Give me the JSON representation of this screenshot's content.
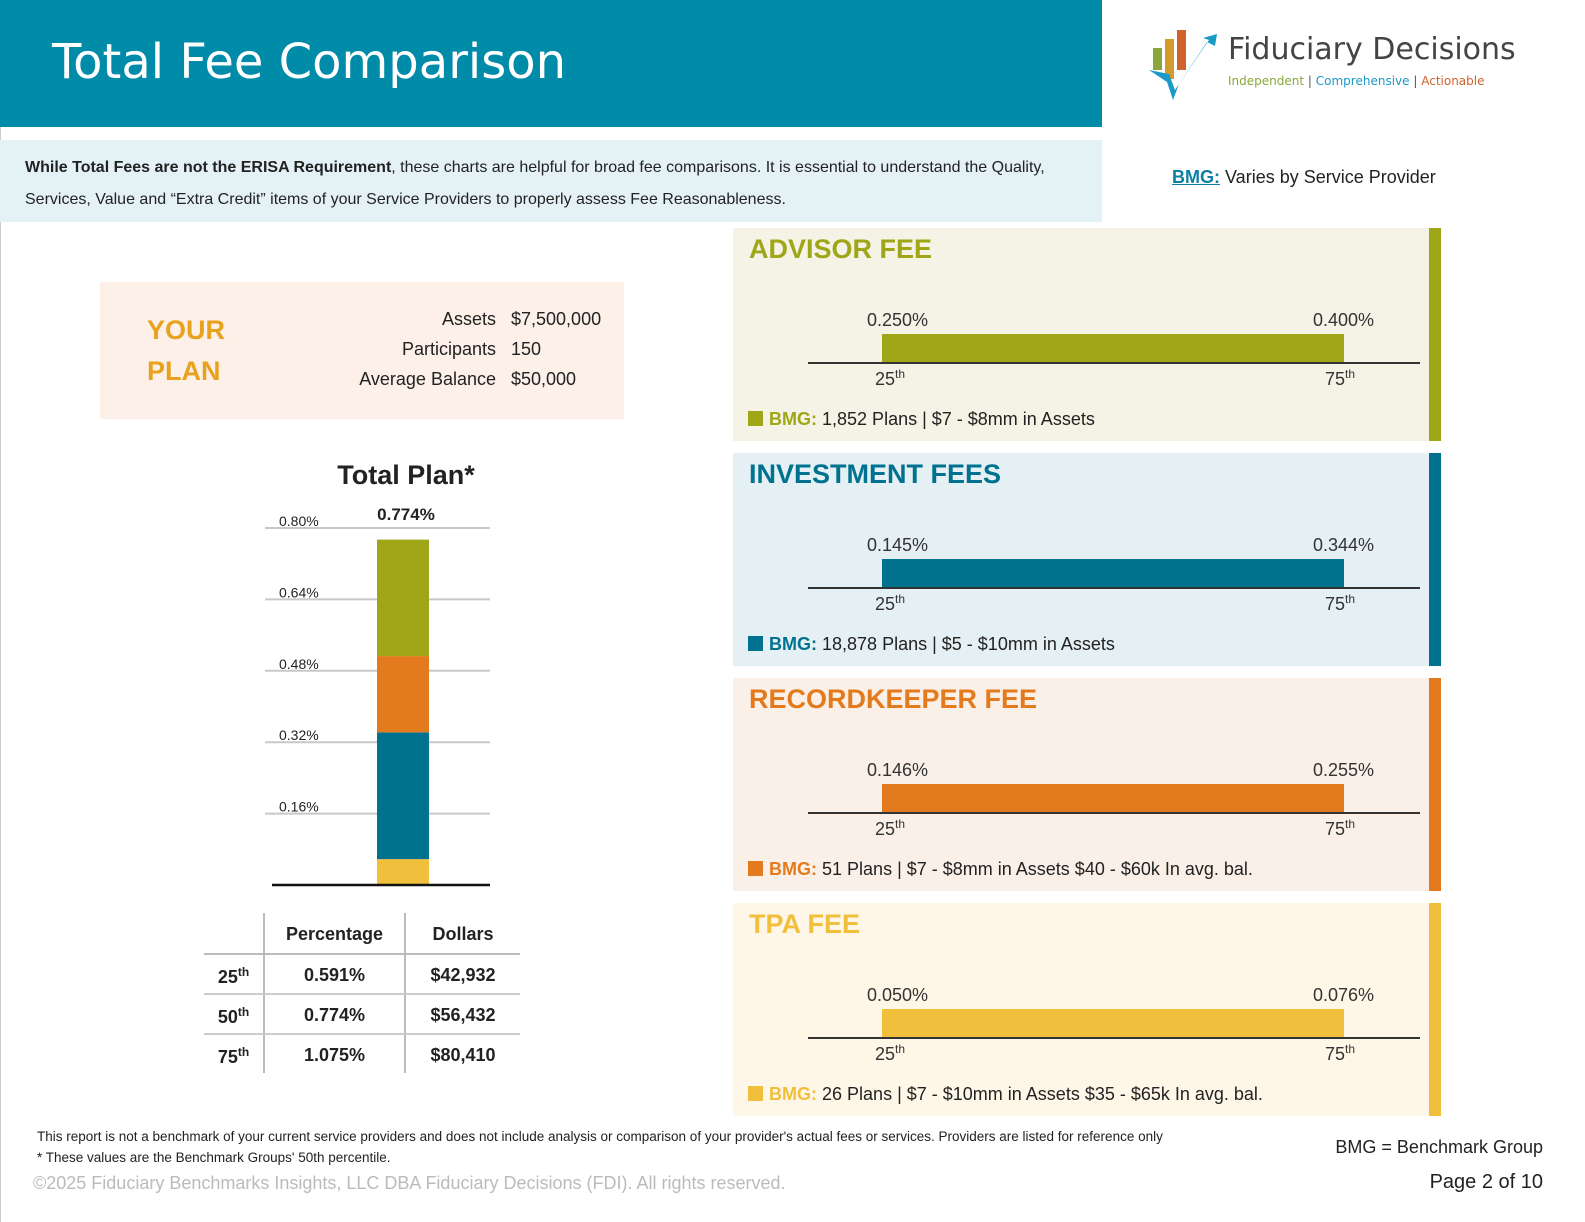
{
  "header": {
    "title": "Total Fee Comparison"
  },
  "logo": {
    "name": "Fiduciary Decisions",
    "tagline": [
      "Independent",
      "Comprehensive",
      "Actionable"
    ],
    "colors": {
      "green": "#8aa83a",
      "blue": "#1a9ac6",
      "orange": "#d0622b",
      "gold": "#d39a2c"
    }
  },
  "intro": {
    "bold": "While Total Fees are not the ERISA Requirement",
    "text": ", these charts are helpful for broad fee comparisons. It is essential to understand the Quality, Services, Value and “Extra Credit” items of your Service Providers to properly assess Fee Reasonableness."
  },
  "bmg_note": {
    "key": "BMG:",
    "text": "Varies by Service Provider"
  },
  "your_plan": {
    "title_line1": "YOUR",
    "title_line2": "PLAN",
    "rows": [
      {
        "label": "Assets",
        "value": "$7,500,000"
      },
      {
        "label": "Participants",
        "value": "150"
      },
      {
        "label": "Average Balance",
        "value": "$50,000"
      }
    ]
  },
  "chart_data": {
    "type": "bar",
    "stacked": true,
    "title": "Total Plan*",
    "total_label": "0.774%",
    "yticks": [
      "0.16%",
      "0.32%",
      "0.48%",
      "0.64%",
      "0.80%"
    ],
    "ylim": [
      0,
      0.8
    ],
    "grid": true,
    "series": [
      {
        "key": "tpa",
        "value": 0.058,
        "color": "#f0c03c"
      },
      {
        "key": "investment",
        "value": 0.284,
        "color": "#00728f"
      },
      {
        "key": "recordkeeper",
        "value": 0.171,
        "color": "#e37b1e"
      },
      {
        "key": "advisor",
        "value": 0.261,
        "color": "#9fa617"
      }
    ]
  },
  "table": {
    "headers": [
      "Percentage",
      "Dollars"
    ],
    "rows": [
      {
        "pct": "25",
        "sup": "th",
        "percentage": "0.591%",
        "dollars": "$42,932"
      },
      {
        "pct": "50",
        "sup": "th",
        "percentage": "0.774%",
        "dollars": "$56,432"
      },
      {
        "pct": "75",
        "sup": "th",
        "percentage": "1.075%",
        "dollars": "$80,410"
      }
    ]
  },
  "panels": [
    {
      "title": "ADVISOR FEE",
      "low": "0.250%",
      "high": "0.400%",
      "p25": "25",
      "p75": "75",
      "sup": "th",
      "bmg": "BMG:",
      "legend": "1,852 Plans | $7 - $8mm in Assets",
      "color": "#9fa617",
      "bg": "#f4f3e5"
    },
    {
      "title": "INVESTMENT FEES",
      "low": "0.145%",
      "high": "0.344%",
      "p25": "25",
      "p75": "75",
      "sup": "th",
      "bmg": "BMG:",
      "legend": "18,878 Plans | $5 - $10mm in Assets",
      "color": "#00728f",
      "bg": "#e4f0f3"
    },
    {
      "title": "RECORDKEEPER FEE",
      "low": "0.146%",
      "high": "0.255%",
      "p25": "25",
      "p75": "75",
      "sup": "th",
      "bmg": "BMG:",
      "legend": "51 Plans | $7 - $8mm in Assets $40 - $60k In avg. bal.",
      "color": "#e37b1e",
      "bg": "#fbf0e7"
    },
    {
      "title": "TPA FEE",
      "low": "0.050%",
      "high": "0.076%",
      "p25": "25",
      "p75": "75",
      "sup": "th",
      "bmg": "BMG:",
      "legend": "26 Plans | $7 - $10mm in Assets $35 - $65k In avg. bal.",
      "color": "#f0c03c",
      "bg": "#fef7e8"
    }
  ],
  "footer": {
    "disclaimer": "This report is not a benchmark of your current service providers and does not include analysis or comparison of your provider's actual fees or services. Providers are listed for reference only",
    "note": "* These values are the Benchmark Groups' 50th percentile.",
    "copyright": "©2025 Fiduciary Benchmarks Insights, LLC DBA Fiduciary Decisions (FDI). All rights reserved.",
    "bmg_definition": "BMG = Benchmark Group",
    "page": "Page 2 of 10"
  }
}
